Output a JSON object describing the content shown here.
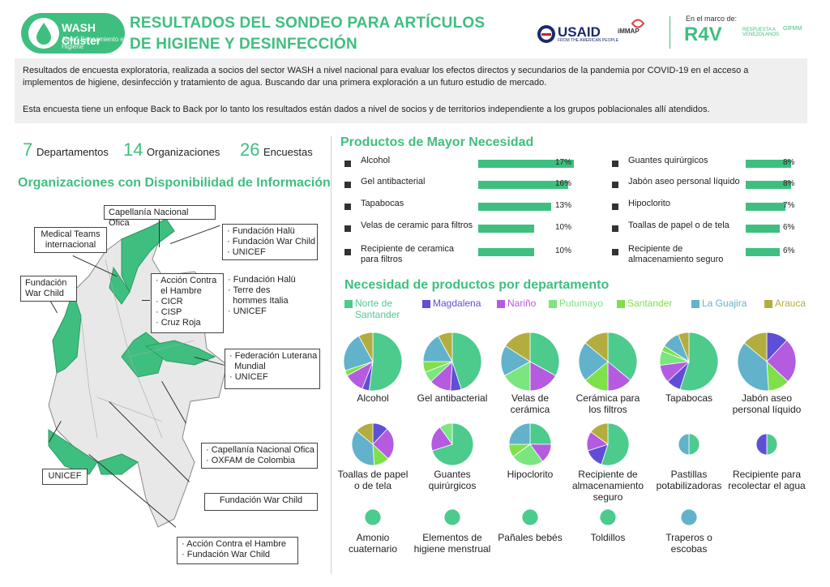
{
  "header": {
    "logo_name": "WASH Clúster",
    "logo_sub": "Agua, Saneamiento e Higiene",
    "title_line1": "RESULTADOS DEL SONDEO PARA ARTÍCULOS",
    "title_line2": "DE HIGIENE Y DESINFECCIÓN",
    "usaid": "USAID",
    "usaid_sub": "FROM THE AMERICAN PEOPLE",
    "immap": "iMMAP",
    "marco": "En el marco de:",
    "r4v": "R4V",
    "r4v_sub": "RESPUESTA A VENEZOLANOS",
    "cluster_small": "GIFMM"
  },
  "intro": {
    "p1": "Resultados de encuesta exploratoria, realizada a socios del sector WASH a nivel nacional para evaluar los efectos directos y secundarios de la pandemia por COVID-19 en el acceso a implementos de higiene, desinfección y tratamiento de agua. Buscando dar una primera exploración a un futuro estudio de mercado.",
    "p2": "Esta encuesta tiene un enfoque Back to Back por lo tanto los resultados están dados a nivel de socios y de territorios independiente a los grupos poblacionales allí atendidos."
  },
  "stats": [
    {
      "num": "7",
      "label": "Departamentos"
    },
    {
      "num": "14",
      "label": "Organizaciones"
    },
    {
      "num": "26",
      "label": "Encuestas"
    }
  ],
  "map": {
    "title": "Organizaciones con Disponibilidad de Información",
    "boxes": [
      {
        "text": "Capellanía Nacional Ofica"
      },
      {
        "text": "Medical Teams\ninternacional"
      },
      {
        "text": "· Fundación Halü\n· Fundación War Child\n· UNICEF"
      },
      {
        "text": "Fundación\nWar Child"
      },
      {
        "text": "· Acción Contra\n  el Hambre\n· CICR\n· CISP\n· Cruz Roja"
      },
      {
        "text": "· Fundación Halü\n· Terre des\n  hommes Italia\n· UNICEF"
      },
      {
        "text": "· Federación Luterana\n  Mundial\n· UNICEF"
      },
      {
        "text": "· Capellanía Nacional Ofica\n· OXFAM de Colombia"
      },
      {
        "text": "UNICEF"
      },
      {
        "text": "Fundación War Child"
      },
      {
        "text": "· Acción Contra el Hambre\n· Fundación War Child"
      }
    ]
  },
  "colors": {
    "green": "#3fbf7f",
    "norte": "#4ccb8c",
    "magdalena": "#5e4fd6",
    "narino": "#b45be0",
    "putumayo": "#7be57f",
    "santander": "#7fe04a",
    "guajira": "#62b2cc",
    "arauca": "#b3ad3f"
  },
  "chart_data": [
    {
      "type": "bar",
      "title": "Productos de Mayor Necesidad",
      "categories": [
        "Alcohol",
        "Gel antibacterial",
        "Tapabocas",
        "Velas de ceramic para filtros",
        "Recipiente de ceramica para filtros",
        "Guantes quirúrgicos",
        "Jabón aseo personal líquido",
        "Hipoclorito",
        "Toallas de papel o de tela",
        "Recipiente de almacenamiento seguro"
      ],
      "values": [
        17,
        16,
        13,
        10,
        10,
        8,
        8,
        7,
        6,
        6
      ],
      "value_labels": [
        "17%",
        "16%",
        "13%",
        "10%",
        "10%",
        "8%",
        "8%",
        "7%",
        "6%",
        "6%"
      ],
      "unit": "%"
    },
    {
      "type": "pie",
      "title": "Necesidad de productos por departamento",
      "series_names": [
        "Norte de Santander",
        "Magdalena",
        "Nariño",
        "Putumayo",
        "Santander",
        "La Guajira",
        "Arauca"
      ],
      "pies": [
        {
          "label": "Alcohol",
          "values": [
            52,
            4,
            11,
            0,
            3,
            22,
            8
          ]
        },
        {
          "label": "Gel antibacterial",
          "values": [
            45,
            6,
            12,
            6,
            6,
            17,
            8
          ]
        },
        {
          "label": "Velas de cerámica",
          "values": [
            33,
            0,
            17,
            17,
            0,
            17,
            16
          ]
        },
        {
          "label": "Cerámica para los filtros",
          "values": [
            36,
            0,
            14,
            0,
            14,
            22,
            14
          ]
        },
        {
          "label": "Tapabocas",
          "values": [
            55,
            8,
            10,
            8,
            3,
            10,
            6
          ]
        },
        {
          "label": "Jabón aseo personal líquido",
          "values": [
            0,
            12,
            25,
            0,
            12,
            37,
            14
          ]
        },
        {
          "label": "Toallas de papel o de tela",
          "values": [
            0,
            12,
            25,
            0,
            12,
            37,
            14
          ]
        },
        {
          "label": "Guantes quirúrgicos",
          "values": [
            70,
            0,
            20,
            10,
            0,
            0,
            0
          ]
        },
        {
          "label": "Hipoclorito",
          "values": [
            25,
            0,
            15,
            25,
            10,
            25,
            0
          ]
        },
        {
          "label": "Recipiente de almacenamiento seguro",
          "values": [
            55,
            15,
            15,
            0,
            0,
            0,
            15
          ]
        },
        {
          "label": "Pastillas potabilizadoras",
          "values": [
            50,
            0,
            0,
            0,
            0,
            50,
            0
          ]
        },
        {
          "label": "Recipiente para recolectar el agua",
          "values": [
            50,
            50,
            0,
            0,
            0,
            0,
            0
          ]
        },
        {
          "label": "Amonio cuaternario",
          "values": [
            100,
            0,
            0,
            0,
            0,
            0,
            0
          ]
        },
        {
          "label": "Elementos de higiene menstrual",
          "values": [
            100,
            0,
            0,
            0,
            0,
            0,
            0
          ]
        },
        {
          "label": "Pañales bebés",
          "values": [
            100,
            0,
            0,
            0,
            0,
            0,
            0
          ]
        },
        {
          "label": "Toldillos",
          "values": [
            100,
            0,
            0,
            0,
            0,
            0,
            0
          ]
        },
        {
          "label": "Traperos o escobas",
          "values": [
            0,
            0,
            0,
            0,
            0,
            100,
            0
          ]
        }
      ]
    }
  ]
}
